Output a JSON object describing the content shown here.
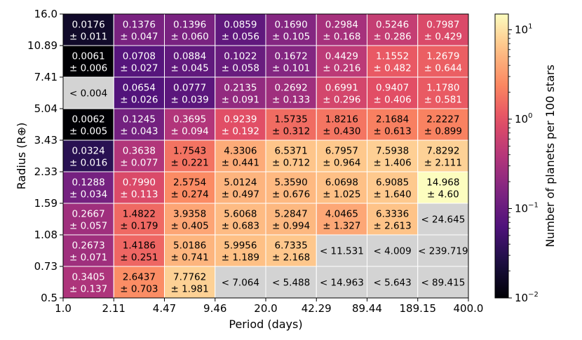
{
  "chart_data": {
    "type": "heatmap",
    "title": "",
    "xlabel": "Period (days)",
    "ylabel": "Radius (R⊕)",
    "x_edges": [
      "1.0",
      "2.11",
      "4.47",
      "9.46",
      "20.0",
      "42.29",
      "89.44",
      "189.15",
      "400.0"
    ],
    "y_edges": [
      "0.5",
      "0.73",
      "1.08",
      "1.59",
      "2.33",
      "3.43",
      "5.04",
      "7.41",
      "10.89",
      "16.0"
    ],
    "colorbar": {
      "label": "Number of planets per 100 stars",
      "scale": "log",
      "range": [
        0.01,
        15
      ],
      "colormap": "magma",
      "ticks": [
        {
          "value": 0.01,
          "label_base": "10",
          "label_exp": "−2"
        },
        {
          "value": 0.1,
          "label_base": "10",
          "label_exp": "−1"
        },
        {
          "value": 1,
          "label_base": "10",
          "label_exp": "0"
        },
        {
          "value": 10,
          "label_base": "10",
          "label_exp": "1"
        }
      ]
    },
    "cells": [
      [
        {
          "value": 0.3405,
          "line1": "0.3405",
          "line2": "± 0.137"
        },
        {
          "value": 2.6437,
          "line1": "2.6437",
          "line2": "± 0.703"
        },
        {
          "value": 7.7762,
          "line1": "7.7762",
          "line2": "± 1.981"
        },
        {
          "value": null,
          "line1": "< 7.064",
          "line2": ""
        },
        {
          "value": null,
          "line1": "< 5.488",
          "line2": ""
        },
        {
          "value": null,
          "line1": "< 14.963",
          "line2": ""
        },
        {
          "value": null,
          "line1": "< 5.643",
          "line2": ""
        },
        {
          "value": null,
          "line1": "< 89.415",
          "line2": ""
        }
      ],
      [
        {
          "value": 0.2673,
          "line1": "0.2673",
          "line2": "± 0.071"
        },
        {
          "value": 1.4186,
          "line1": "1.4186",
          "line2": "± 0.251"
        },
        {
          "value": 5.0186,
          "line1": "5.0186",
          "line2": "± 0.741"
        },
        {
          "value": 5.9956,
          "line1": "5.9956",
          "line2": "± 1.189"
        },
        {
          "value": 6.7335,
          "line1": "6.7335",
          "line2": "± 2.168"
        },
        {
          "value": null,
          "line1": "< 11.531",
          "line2": ""
        },
        {
          "value": null,
          "line1": "< 4.009",
          "line2": ""
        },
        {
          "value": null,
          "line1": "< 239.719",
          "line2": ""
        }
      ],
      [
        {
          "value": 0.2667,
          "line1": "0.2667",
          "line2": "± 0.057"
        },
        {
          "value": 1.4822,
          "line1": "1.4822",
          "line2": "± 0.179"
        },
        {
          "value": 3.9358,
          "line1": "3.9358",
          "line2": "± 0.405"
        },
        {
          "value": 5.6068,
          "line1": "5.6068",
          "line2": "± 0.683"
        },
        {
          "value": 5.2847,
          "line1": "5.2847",
          "line2": "± 0.994"
        },
        {
          "value": 4.0465,
          "line1": "4.0465",
          "line2": "± 1.327"
        },
        {
          "value": 6.3336,
          "line1": "6.3336",
          "line2": "± 2.613"
        },
        {
          "value": null,
          "line1": "< 24.645",
          "line2": ""
        }
      ],
      [
        {
          "value": 0.1288,
          "line1": "0.1288",
          "line2": "± 0.034"
        },
        {
          "value": 0.799,
          "line1": "0.7990",
          "line2": "± 0.113"
        },
        {
          "value": 2.5754,
          "line1": "2.5754",
          "line2": "± 0.274"
        },
        {
          "value": 5.0124,
          "line1": "5.0124",
          "line2": "± 0.497"
        },
        {
          "value": 5.359,
          "line1": "5.3590",
          "line2": "± 0.676"
        },
        {
          "value": 6.0698,
          "line1": "6.0698",
          "line2": "± 1.025"
        },
        {
          "value": 6.9085,
          "line1": "6.9085",
          "line2": "± 1.640"
        },
        {
          "value": 14.968,
          "line1": "14.968",
          "line2": "± 4.60"
        }
      ],
      [
        {
          "value": 0.0324,
          "line1": "0.0324",
          "line2": "± 0.016"
        },
        {
          "value": 0.3638,
          "line1": "0.3638",
          "line2": "± 0.077"
        },
        {
          "value": 1.7543,
          "line1": "1.7543",
          "line2": "± 0.221"
        },
        {
          "value": 4.3306,
          "line1": "4.3306",
          "line2": "± 0.441"
        },
        {
          "value": 6.5371,
          "line1": "6.5371",
          "line2": "± 0.712"
        },
        {
          "value": 6.7957,
          "line1": "6.7957",
          "line2": "± 0.964"
        },
        {
          "value": 7.5938,
          "line1": "7.5938",
          "line2": "± 1.406"
        },
        {
          "value": 7.8292,
          "line1": "7.8292",
          "line2": "± 2.111"
        }
      ],
      [
        {
          "value": 0.0062,
          "line1": "0.0062",
          "line2": "± 0.005"
        },
        {
          "value": 0.1245,
          "line1": "0.1245",
          "line2": "± 0.043"
        },
        {
          "value": 0.3695,
          "line1": "0.3695",
          "line2": "± 0.094"
        },
        {
          "value": 0.9239,
          "line1": "0.9239",
          "line2": "± 0.192"
        },
        {
          "value": 1.5735,
          "line1": "1.5735",
          "line2": "± 0.312"
        },
        {
          "value": 1.8216,
          "line1": "1.8216",
          "line2": "± 0.430"
        },
        {
          "value": 2.1684,
          "line1": "2.1684",
          "line2": "± 0.613"
        },
        {
          "value": 2.2227,
          "line1": "2.2227",
          "line2": "± 0.899"
        }
      ],
      [
        {
          "value": null,
          "line1": "< 0.004",
          "line2": ""
        },
        {
          "value": 0.0654,
          "line1": "0.0654",
          "line2": "± 0.026"
        },
        {
          "value": 0.0777,
          "line1": "0.0777",
          "line2": "± 0.039"
        },
        {
          "value": 0.2135,
          "line1": "0.2135",
          "line2": "± 0.091"
        },
        {
          "value": 0.2692,
          "line1": "0.2692",
          "line2": "± 0.133"
        },
        {
          "value": 0.6991,
          "line1": "0.6991",
          "line2": "± 0.296"
        },
        {
          "value": 0.9407,
          "line1": "0.9407",
          "line2": "± 0.406"
        },
        {
          "value": 1.178,
          "line1": "1.1780",
          "line2": "± 0.581"
        }
      ],
      [
        {
          "value": 0.0061,
          "line1": "0.0061",
          "line2": "± 0.006"
        },
        {
          "value": 0.0708,
          "line1": "0.0708",
          "line2": "± 0.027"
        },
        {
          "value": 0.0884,
          "line1": "0.0884",
          "line2": "± 0.045"
        },
        {
          "value": 0.1022,
          "line1": "0.1022",
          "line2": "± 0.058"
        },
        {
          "value": 0.1672,
          "line1": "0.1672",
          "line2": "± 0.101"
        },
        {
          "value": 0.4429,
          "line1": "0.4429",
          "line2": "± 0.216"
        },
        {
          "value": 1.1552,
          "line1": "1.1552",
          "line2": "± 0.482"
        },
        {
          "value": 1.2679,
          "line1": "1.2679",
          "line2": "± 0.644"
        }
      ],
      [
        {
          "value": 0.0176,
          "line1": "0.0176",
          "line2": "± 0.011"
        },
        {
          "value": 0.1376,
          "line1": "0.1376",
          "line2": "± 0.047"
        },
        {
          "value": 0.1396,
          "line1": "0.1396",
          "line2": "± 0.060"
        },
        {
          "value": 0.0859,
          "line1": "0.0859",
          "line2": "± 0.056"
        },
        {
          "value": 0.169,
          "line1": "0.1690",
          "line2": "± 0.105"
        },
        {
          "value": 0.2984,
          "line1": "0.2984",
          "line2": "± 0.168"
        },
        {
          "value": 0.5246,
          "line1": "0.5246",
          "line2": "± 0.286"
        },
        {
          "value": 0.7987,
          "line1": "0.7987",
          "line2": "± 0.429"
        }
      ]
    ],
    "colors": {
      "upper_limit_cell": "#d3d3d3",
      "grid_line": "#ffffff",
      "frame": "#000000"
    }
  }
}
